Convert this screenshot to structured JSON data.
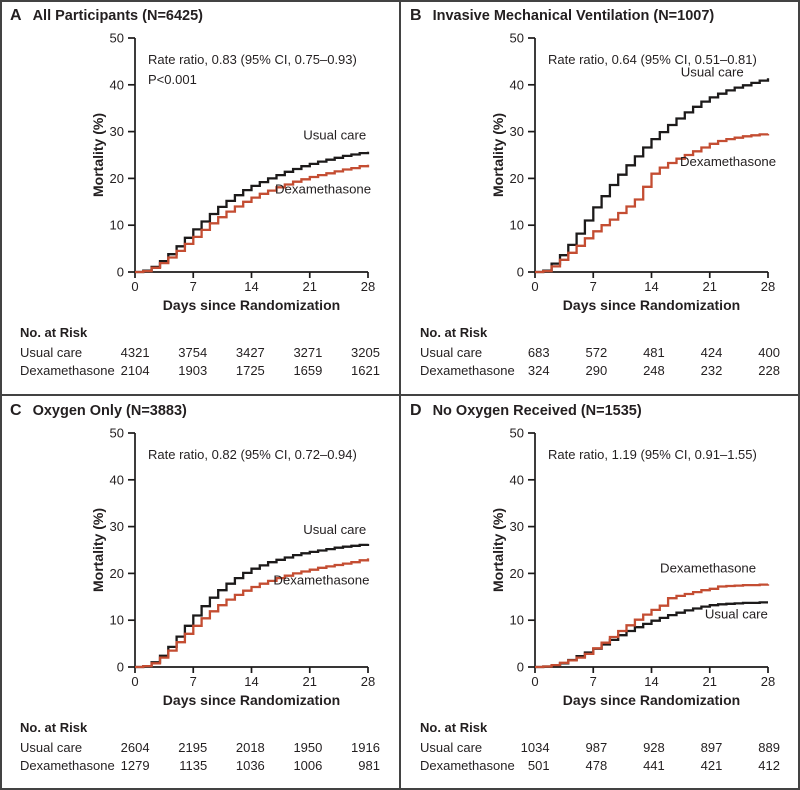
{
  "figure": {
    "x_axis_label": "Days since Randomization",
    "y_axis_label": "Mortality (%)",
    "x_ticks": [
      0,
      7,
      14,
      21,
      28
    ],
    "y_ticks": [
      0,
      10,
      20,
      30,
      40,
      50
    ],
    "x_range": [
      0,
      28
    ],
    "y_range": [
      0,
      50
    ],
    "risk_table_header": "No. at Risk",
    "colors": {
      "usual_care": "#1c1a1a",
      "dexamethasone": "#c44d32",
      "axis": "#1c1a1a",
      "border": "#434343"
    }
  },
  "chart_data": [
    {
      "type": "line",
      "panel_letter": "A",
      "title": "All Participants (N=6425)",
      "annotation": [
        "Rate ratio, 0.83 (95% CI, 0.75–0.93)",
        "P<0.001"
      ],
      "x_unit": "days",
      "x_step_days": 1,
      "series": [
        {
          "name": "Usual care",
          "color_key": "usual_care",
          "values": [
            0,
            0.3,
            1.1,
            2.3,
            3.8,
            5.5,
            7.3,
            9.1,
            10.8,
            12.4,
            13.9,
            15.2,
            16.4,
            17.5,
            18.4,
            19.2,
            20.0,
            20.7,
            21.4,
            22.0,
            22.6,
            23.1,
            23.6,
            24.0,
            24.4,
            24.8,
            25.1,
            25.4,
            25.7
          ],
          "label_anchor": {
            "day": 24.0,
            "pct": 28.3
          }
        },
        {
          "name": "Dexamethasone",
          "color_key": "dexamethasone",
          "values": [
            0,
            0.2,
            0.9,
            1.9,
            3.1,
            4.5,
            6.0,
            7.5,
            9.0,
            10.4,
            11.7,
            12.9,
            14.0,
            15.0,
            15.9,
            16.7,
            17.4,
            18.1,
            18.7,
            19.3,
            19.8,
            20.3,
            20.7,
            21.1,
            21.5,
            21.9,
            22.2,
            22.6,
            22.9
          ],
          "label_anchor": {
            "day": 22.6,
            "pct": 16.8
          }
        }
      ],
      "no_at_risk": {
        "days": [
          0,
          7,
          14,
          21,
          28
        ],
        "rows": [
          {
            "label": "Usual care",
            "values": [
              4321,
              3754,
              3427,
              3271,
              3205
            ]
          },
          {
            "label": "Dexamethasone",
            "values": [
              2104,
              1903,
              1725,
              1659,
              1621
            ]
          }
        ]
      }
    },
    {
      "type": "line",
      "panel_letter": "B",
      "title": "Invasive Mechanical Ventilation (N=1007)",
      "annotation": [
        "Rate ratio, 0.64 (95% CI, 0.51–0.81)"
      ],
      "x_unit": "days",
      "x_step_days": 1,
      "series": [
        {
          "name": "Usual care",
          "color_key": "usual_care",
          "values": [
            0,
            0.3,
            1.8,
            3.6,
            5.8,
            8.2,
            11.0,
            13.8,
            16.2,
            18.6,
            20.8,
            22.8,
            24.7,
            26.6,
            28.4,
            29.9,
            31.4,
            32.8,
            34.1,
            35.3,
            36.4,
            37.3,
            38.1,
            38.8,
            39.4,
            39.9,
            40.4,
            40.9,
            41.4
          ],
          "label_anchor": {
            "day": 21.3,
            "pct": 41.8
          }
        },
        {
          "name": "Dexamethasone",
          "color_key": "dexamethasone",
          "values": [
            0,
            0.2,
            1.2,
            2.6,
            4.1,
            5.6,
            7.2,
            8.7,
            10.0,
            11.2,
            12.6,
            14.0,
            15.5,
            18.2,
            21.0,
            22.3,
            23.3,
            24.2,
            25.0,
            25.8,
            26.6,
            27.4,
            28.0,
            28.4,
            28.7,
            29.0,
            29.2,
            29.4,
            29.5
          ],
          "label_anchor": {
            "day": 23.2,
            "pct": 22.7
          }
        }
      ],
      "no_at_risk": {
        "days": [
          0,
          7,
          14,
          21,
          28
        ],
        "rows": [
          {
            "label": "Usual care",
            "values": [
              683,
              572,
              481,
              424,
              400
            ]
          },
          {
            "label": "Dexamethasone",
            "values": [
              324,
              290,
              248,
              232,
              228
            ]
          }
        ]
      }
    },
    {
      "type": "line",
      "panel_letter": "C",
      "title": "Oxygen Only (N=3883)",
      "annotation": [
        "Rate ratio, 0.82 (95% CI, 0.72–0.94)"
      ],
      "x_unit": "days",
      "x_step_days": 1,
      "series": [
        {
          "name": "Usual care",
          "color_key": "usual_care",
          "values": [
            0,
            0.2,
            1.0,
            2.4,
            4.3,
            6.5,
            8.8,
            11.0,
            13.0,
            14.8,
            16.4,
            17.8,
            19.0,
            20.1,
            21.0,
            21.7,
            22.4,
            22.9,
            23.4,
            23.9,
            24.3,
            24.6,
            24.9,
            25.2,
            25.5,
            25.7,
            25.9,
            26.1,
            26.3
          ],
          "label_anchor": {
            "day": 24.0,
            "pct": 28.4
          }
        },
        {
          "name": "Dexamethasone",
          "color_key": "dexamethasone",
          "values": [
            0,
            0.2,
            0.8,
            2.0,
            3.5,
            5.3,
            7.1,
            8.8,
            10.4,
            11.9,
            13.2,
            14.4,
            15.4,
            16.3,
            17.1,
            17.8,
            18.4,
            19.0,
            19.5,
            20.0,
            20.4,
            20.8,
            21.2,
            21.5,
            21.8,
            22.1,
            22.4,
            22.8,
            23.2
          ],
          "label_anchor": {
            "day": 22.4,
            "pct": 17.6
          }
        }
      ],
      "no_at_risk": {
        "days": [
          0,
          7,
          14,
          21,
          28
        ],
        "rows": [
          {
            "label": "Usual care",
            "values": [
              2604,
              2195,
              2018,
              1950,
              1916
            ]
          },
          {
            "label": "Dexamethasone",
            "values": [
              1279,
              1135,
              1036,
              1006,
              981
            ]
          }
        ]
      }
    },
    {
      "type": "line",
      "panel_letter": "D",
      "title": "No Oxygen Received (N=1535)",
      "annotation": [
        "Rate ratio, 1.19 (95% CI, 0.91–1.55)"
      ],
      "x_unit": "days",
      "x_step_days": 1,
      "series": [
        {
          "name": "Usual care",
          "color_key": "usual_care",
          "values": [
            0,
            0.1,
            0.3,
            0.8,
            1.5,
            2.3,
            3.1,
            3.9,
            4.8,
            5.8,
            6.8,
            7.7,
            8.5,
            9.2,
            9.9,
            10.5,
            11.1,
            11.6,
            12.1,
            12.5,
            12.9,
            13.2,
            13.4,
            13.5,
            13.6,
            13.7,
            13.7,
            13.8,
            13.8
          ],
          "label_anchor": {
            "day": 24.2,
            "pct": 10.4
          }
        },
        {
          "name": "Dexamethasone",
          "color_key": "dexamethasone",
          "values": [
            0,
            0.1,
            0.4,
            0.9,
            1.4,
            2.0,
            2.8,
            4.0,
            5.2,
            6.4,
            7.7,
            8.9,
            10.1,
            11.2,
            12.2,
            13.1,
            14.7,
            15.2,
            15.6,
            16.0,
            16.4,
            16.7,
            17.2,
            17.3,
            17.4,
            17.5,
            17.5,
            17.6,
            17.7
          ],
          "label_anchor": {
            "day": 20.8,
            "pct": 20.2
          }
        }
      ],
      "no_at_risk": {
        "days": [
          0,
          7,
          14,
          21,
          28
        ],
        "rows": [
          {
            "label": "Usual care",
            "values": [
              1034,
              987,
              928,
              897,
              889
            ]
          },
          {
            "label": "Dexamethasone",
            "values": [
              501,
              478,
              441,
              421,
              412
            ]
          }
        ]
      }
    }
  ]
}
